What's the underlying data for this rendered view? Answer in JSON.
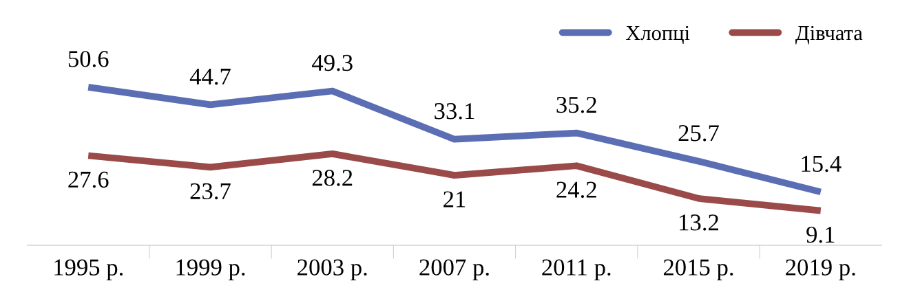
{
  "chart_data": {
    "type": "line",
    "categories": [
      "1995 р.",
      "1999 р.",
      "2003 р.",
      "2007 р.",
      "2011 р.",
      "2015 р.",
      "2019 р."
    ],
    "series": [
      {
        "name": "Хлопці",
        "color": "#5b6eb4",
        "values": [
          50.6,
          44.7,
          49.3,
          33.1,
          35.2,
          25.7,
          15.4
        ]
      },
      {
        "name": "Дівчата",
        "color": "#9b4a4a",
        "values": [
          27.6,
          23.7,
          28.2,
          21,
          24.2,
          13.2,
          9.1
        ]
      }
    ],
    "tick_labels": "x",
    "data_labels": true,
    "legend": "top right",
    "grid": false,
    "marker": "none",
    "line_style": "solid"
  }
}
